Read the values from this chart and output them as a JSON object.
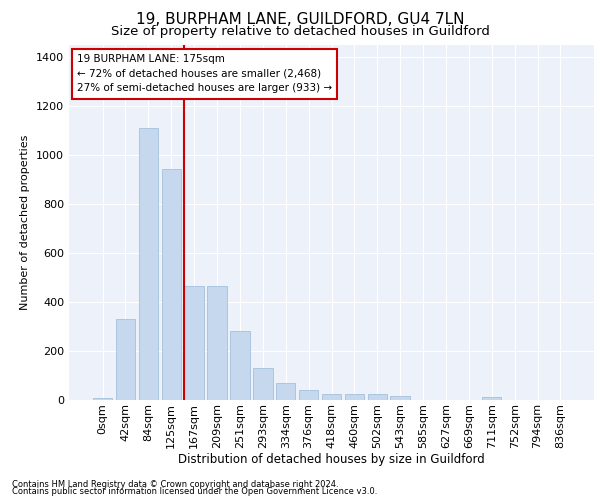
{
  "title1": "19, BURPHAM LANE, GUILDFORD, GU4 7LN",
  "title2": "Size of property relative to detached houses in Guildford",
  "xlabel": "Distribution of detached houses by size in Guildford",
  "ylabel": "Number of detached properties",
  "footnote1": "Contains HM Land Registry data © Crown copyright and database right 2024.",
  "footnote2": "Contains public sector information licensed under the Open Government Licence v3.0.",
  "bar_labels": [
    "0sqm",
    "42sqm",
    "84sqm",
    "125sqm",
    "167sqm",
    "209sqm",
    "251sqm",
    "293sqm",
    "334sqm",
    "376sqm",
    "418sqm",
    "460sqm",
    "502sqm",
    "543sqm",
    "585sqm",
    "627sqm",
    "669sqm",
    "711sqm",
    "752sqm",
    "794sqm",
    "836sqm"
  ],
  "bar_values": [
    10,
    330,
    1110,
    945,
    465,
    465,
    280,
    130,
    70,
    40,
    25,
    25,
    25,
    17,
    0,
    0,
    0,
    12,
    0,
    0,
    0
  ],
  "bar_color": "#c5d8ee",
  "bar_edge_color": "#9bbad8",
  "annotation_box_text": "19 BURPHAM LANE: 175sqm\n← 72% of detached houses are smaller (2,468)\n27% of semi-detached houses are larger (933) →",
  "vline_x": 3.57,
  "vline_color": "#cc0000",
  "ylim": [
    0,
    1450
  ],
  "yticks": [
    0,
    200,
    400,
    600,
    800,
    1000,
    1200,
    1400
  ],
  "bg_color": "#edf2fa",
  "grid_color": "#ffffff",
  "title1_fontsize": 11,
  "title2_fontsize": 9.5,
  "footnote_fontsize": 6.0,
  "ylabel_fontsize": 8,
  "xlabel_fontsize": 8.5,
  "tick_fontsize": 8,
  "annot_fontsize": 7.5
}
